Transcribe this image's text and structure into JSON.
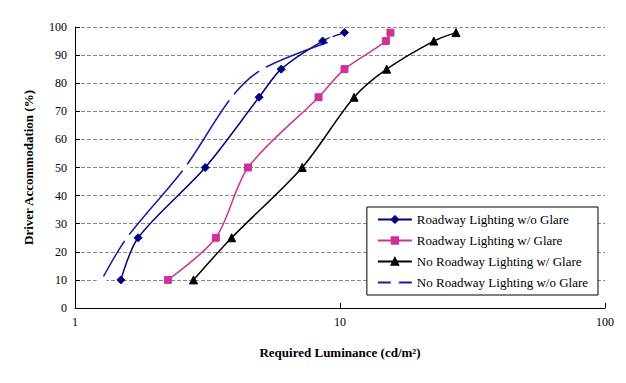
{
  "chart_data": {
    "type": "line",
    "x_label": "Required Luminance (cd/m²)",
    "y_label": "Driver Accommodation (%)",
    "log": "x",
    "xlim": [
      1,
      100
    ],
    "xticks": [
      1,
      10,
      100
    ],
    "ylim": [
      0,
      100
    ],
    "yticks": [
      0,
      10,
      20,
      30,
      40,
      50,
      60,
      70,
      80,
      90,
      100
    ],
    "grid": true,
    "legend": "bottom-right",
    "series": [
      {
        "name": "Roadway Lighting w/o Glare",
        "color": "#000080",
        "marker": "diamond",
        "x": [
          1.49,
          1.73,
          3.1,
          4.95,
          6.0,
          8.6,
          10.4
        ],
        "values": [
          10,
          25,
          50,
          75,
          85,
          95,
          98
        ]
      },
      {
        "name": "Roadway Lighting w/ Glare",
        "color": "#CC3399",
        "marker": "square",
        "x": [
          2.24,
          3.4,
          4.5,
          8.3,
          10.4,
          14.9,
          15.5
        ],
        "values": [
          10,
          25,
          50,
          75,
          85,
          95,
          98
        ]
      },
      {
        "name": "No Roadway Lighting w/ Glare",
        "color": "#000000",
        "marker": "triangle",
        "x": [
          2.8,
          3.9,
          7.2,
          11.3,
          15.0,
          22.6,
          27.4
        ],
        "values": [
          10,
          25,
          50,
          75,
          85,
          95,
          98
        ]
      },
      {
        "name": "No Roadway Lighting w/o Glare",
        "color": "#1A1AA6",
        "marker": "open_diamond",
        "x": [
          1.26,
          1.57,
          2.6,
          3.9,
          5.1,
          9.3
        ],
        "values": [
          10,
          25,
          50,
          75,
          85,
          95
        ]
      }
    ]
  }
}
